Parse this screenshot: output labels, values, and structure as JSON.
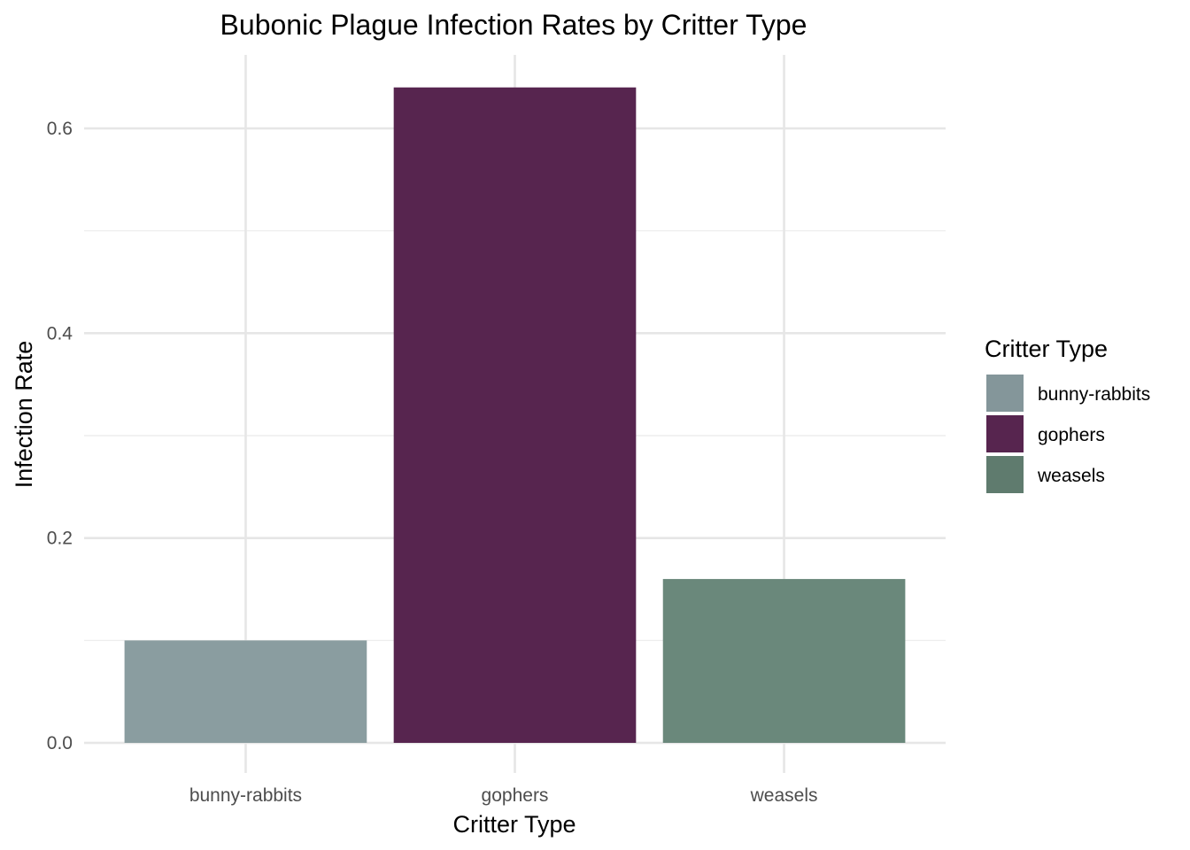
{
  "chart_data": {
    "type": "bar",
    "title": "Bubonic Plague Infection Rates by Critter Type",
    "xlabel": "Critter Type",
    "ylabel": "Infection Rate",
    "categories": [
      "bunny-rabbits",
      "gophers",
      "weasels"
    ],
    "values": [
      0.1,
      0.64,
      0.16
    ],
    "colors": [
      "#8a9da0",
      "#57254f",
      "#6a887b"
    ],
    "ylim": [
      -0.02,
      0.671
    ],
    "yticks": [
      0.0,
      0.2,
      0.4,
      0.6
    ],
    "ytick_labels": [
      "0.0",
      "0.2",
      "0.4",
      "0.6"
    ],
    "grid": true,
    "legend": {
      "title": "Critter Type",
      "position": "right",
      "entries": [
        {
          "label": "bunny-rabbits",
          "color": "#84969a"
        },
        {
          "label": "gophers",
          "color": "#57254f"
        },
        {
          "label": "weasels",
          "color": "#5f7b6e"
        }
      ]
    }
  }
}
